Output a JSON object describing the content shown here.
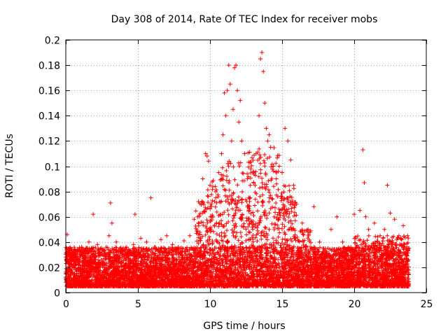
{
  "chart_data": {
    "type": "scatter",
    "title": "Day 308 of 2014, Rate Of TEC Index for receiver mobs",
    "xlabel": "GPS time / hours",
    "ylabel": "ROTI / TECUs",
    "xlim": [
      0,
      25
    ],
    "ylim": [
      0,
      0.2
    ],
    "xticks": [
      0,
      5,
      10,
      15,
      20,
      25
    ],
    "yticks": [
      0,
      0.02,
      0.04,
      0.06,
      0.08,
      0.1,
      0.12,
      0.14,
      0.16,
      0.18,
      0.2
    ],
    "xtick_labels": [
      "0",
      "5",
      "10",
      "15",
      "20",
      "25"
    ],
    "ytick_labels": [
      "0",
      "0.02",
      "0.04",
      "0.06",
      "0.08",
      "0.1",
      "0.12",
      "0.14",
      "0.16",
      "0.18",
      "0.2"
    ],
    "grid": true,
    "marker": "+",
    "color": "#ff0000",
    "series": [
      {
        "name": "ROTI",
        "x": [
          0.1,
          0.2,
          0.3,
          0.5,
          0.8,
          1.0,
          1.3,
          1.6,
          1.9,
          2.2,
          2.6,
          3.0,
          3.1,
          3.2,
          3.5,
          3.9,
          4.3,
          4.7,
          4.8,
          5.2,
          5.6,
          5.9,
          6.2,
          6.6,
          7.0,
          7.4,
          7.8,
          8.2,
          8.6,
          8.9,
          9.2,
          9.5,
          9.7,
          9.8,
          9.9,
          10.0,
          10.2,
          10.4,
          10.6,
          10.8,
          10.9,
          11.0,
          11.1,
          11.2,
          11.3,
          11.4,
          11.5,
          11.6,
          11.7,
          11.8,
          11.9,
          12.0,
          12.1,
          12.2,
          12.4,
          12.6,
          12.8,
          13.0,
          13.2,
          13.4,
          13.5,
          13.6,
          13.7,
          13.8,
          13.9,
          14.0,
          14.1,
          14.2,
          14.4,
          14.6,
          14.8,
          15.0,
          15.2,
          15.4,
          15.6,
          15.8,
          16.0,
          16.4,
          16.8,
          17.2,
          17.6,
          18.0,
          18.4,
          18.8,
          19.2,
          19.6,
          20.0,
          20.4,
          20.6,
          20.7,
          20.8,
          21.0,
          21.4,
          21.8,
          22.1,
          22.3,
          22.5,
          22.8,
          23.1,
          23.4,
          23.7
        ],
        "y": [
          0.046,
          0.035,
          0.028,
          0.022,
          0.033,
          0.03,
          0.027,
          0.04,
          0.062,
          0.038,
          0.034,
          0.045,
          0.071,
          0.055,
          0.04,
          0.034,
          0.032,
          0.038,
          0.062,
          0.043,
          0.04,
          0.075,
          0.036,
          0.042,
          0.045,
          0.038,
          0.036,
          0.041,
          0.045,
          0.058,
          0.072,
          0.09,
          0.11,
          0.108,
          0.104,
          0.085,
          0.06,
          0.075,
          0.095,
          0.11,
          0.125,
          0.158,
          0.14,
          0.16,
          0.18,
          0.165,
          0.12,
          0.145,
          0.178,
          0.18,
          0.16,
          0.135,
          0.152,
          0.12,
          0.11,
          0.09,
          0.085,
          0.095,
          0.11,
          0.14,
          0.185,
          0.19,
          0.175,
          0.15,
          0.13,
          0.12,
          0.125,
          0.115,
          0.1,
          0.09,
          0.1,
          0.095,
          0.13,
          0.12,
          0.105,
          0.085,
          0.07,
          0.055,
          0.05,
          0.068,
          0.04,
          0.035,
          0.05,
          0.06,
          0.04,
          0.035,
          0.062,
          0.065,
          0.113,
          0.087,
          0.06,
          0.05,
          0.055,
          0.045,
          0.05,
          0.085,
          0.063,
          0.058,
          0.045,
          0.053,
          0.045
        ],
        "note": "Dense scatter (~thousands of points). Listed points are representative upper-envelope/outlier values read from the figure; the bulk of points lie between 0.005 and 0.035 across 0–23.8 h."
      }
    ]
  }
}
